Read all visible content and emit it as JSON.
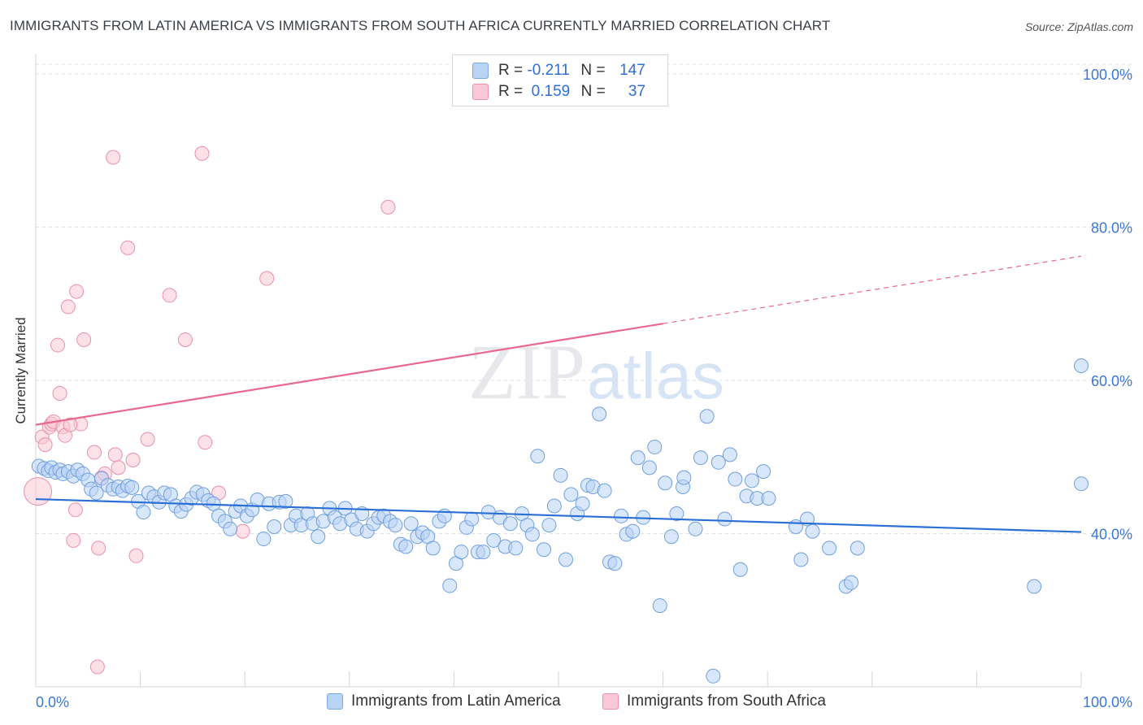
{
  "title": "IMMIGRANTS FROM LATIN AMERICA VS IMMIGRANTS FROM SOUTH AFRICA CURRENTLY MARRIED CORRELATION CHART",
  "source": "Source: ZipAtlas.com",
  "watermark": {
    "zip": "ZIP",
    "atlas": "atlas"
  },
  "legend": {
    "rows": [
      {
        "r_label": "R =",
        "r_value": "-0.211",
        "n_label": "N =",
        "n_value": "147"
      },
      {
        "r_label": "R =",
        "r_value": "0.159",
        "n_label": "N =",
        "n_value": "37"
      }
    ]
  },
  "bottom_legend": {
    "series1": "Immigrants from Latin America",
    "series2": "Immigrants from South Africa"
  },
  "colors": {
    "blue_fill": "#b9d3f5",
    "blue_stroke": "#6f9fe0",
    "blue_line": "#2a6fd6",
    "pink_fill": "#f9c8d6",
    "pink_stroke": "#ec8fab",
    "pink_line": "#e8688f",
    "axis_label": "#3a78d4"
  },
  "chart_data": {
    "type": "scatter",
    "title": "IMMIGRANTS FROM LATIN AMERICA VS IMMIGRANTS FROM SOUTH AFRICA CURRENTLY MARRIED CORRELATION CHART",
    "xlabel": "",
    "ylabel": "Currently Married",
    "xlim": [
      0,
      100
    ],
    "ylim": [
      20,
      102
    ],
    "x_tick_labels": [
      "0.0%",
      "100.0%"
    ],
    "y_tick_labels": [
      "40.0%",
      "60.0%",
      "80.0%",
      "100.0%"
    ],
    "y_ticks": [
      40,
      60,
      80,
      100
    ],
    "grid": true,
    "legend_placement": "top-center",
    "series": [
      {
        "name": "Immigrants from Latin America",
        "R": -0.211,
        "N": 147,
        "trend": {
          "x": [
            0,
            100
          ],
          "y": [
            44.5,
            40.2
          ],
          "dashed_from": null
        },
        "points": [
          [
            0.3,
            48.8
          ],
          [
            0.8,
            48.5
          ],
          [
            1.2,
            48.2
          ],
          [
            1.5,
            48.6
          ],
          [
            1.9,
            48.0
          ],
          [
            2.3,
            48.3
          ],
          [
            2.6,
            47.8
          ],
          [
            3.1,
            48.1
          ],
          [
            3.6,
            47.5
          ],
          [
            4.0,
            48.3
          ],
          [
            4.5,
            47.8
          ],
          [
            5.0,
            47.0
          ],
          [
            5.3,
            45.8
          ],
          [
            5.8,
            45.3
          ],
          [
            6.3,
            47.2
          ],
          [
            6.9,
            46.3
          ],
          [
            7.4,
            45.8
          ],
          [
            7.9,
            46.1
          ],
          [
            8.3,
            45.6
          ],
          [
            8.8,
            46.2
          ],
          [
            9.2,
            46.0
          ],
          [
            9.8,
            44.2
          ],
          [
            10.3,
            42.8
          ],
          [
            10.8,
            45.3
          ],
          [
            11.3,
            44.8
          ],
          [
            11.8,
            44.1
          ],
          [
            12.3,
            45.3
          ],
          [
            12.9,
            45.1
          ],
          [
            13.4,
            43.6
          ],
          [
            13.9,
            42.9
          ],
          [
            14.4,
            43.8
          ],
          [
            14.9,
            44.6
          ],
          [
            15.4,
            45.4
          ],
          [
            16.0,
            45.1
          ],
          [
            16.5,
            44.3
          ],
          [
            17.0,
            43.9
          ],
          [
            17.5,
            42.3
          ],
          [
            18.1,
            41.6
          ],
          [
            18.6,
            40.6
          ],
          [
            19.1,
            42.9
          ],
          [
            19.6,
            43.6
          ],
          [
            20.2,
            42.3
          ],
          [
            20.7,
            43.1
          ],
          [
            21.2,
            44.4
          ],
          [
            21.8,
            39.3
          ],
          [
            22.3,
            43.9
          ],
          [
            22.8,
            40.9
          ],
          [
            23.3,
            44.1
          ],
          [
            23.9,
            44.2
          ],
          [
            24.4,
            41.1
          ],
          [
            24.9,
            42.3
          ],
          [
            25.4,
            41.1
          ],
          [
            26.0,
            42.6
          ],
          [
            26.5,
            41.3
          ],
          [
            27.0,
            39.6
          ],
          [
            27.5,
            41.6
          ],
          [
            28.1,
            43.3
          ],
          [
            28.6,
            42.1
          ],
          [
            29.1,
            41.3
          ],
          [
            29.6,
            43.3
          ],
          [
            30.2,
            41.8
          ],
          [
            30.7,
            40.6
          ],
          [
            31.2,
            42.6
          ],
          [
            31.7,
            40.3
          ],
          [
            32.3,
            41.3
          ],
          [
            32.8,
            42.1
          ],
          [
            33.3,
            42.3
          ],
          [
            33.9,
            41.6
          ],
          [
            34.4,
            41.1
          ],
          [
            34.9,
            38.6
          ],
          [
            35.4,
            38.3
          ],
          [
            35.9,
            41.3
          ],
          [
            36.5,
            39.6
          ],
          [
            37.0,
            40.1
          ],
          [
            37.5,
            39.6
          ],
          [
            38.0,
            38.1
          ],
          [
            38.6,
            41.6
          ],
          [
            39.1,
            42.3
          ],
          [
            39.6,
            33.2
          ],
          [
            40.2,
            36.1
          ],
          [
            40.7,
            37.6
          ],
          [
            41.2,
            40.8
          ],
          [
            41.7,
            41.9
          ],
          [
            42.3,
            37.6
          ],
          [
            42.8,
            37.6
          ],
          [
            43.3,
            42.8
          ],
          [
            43.8,
            39.1
          ],
          [
            44.4,
            42.1
          ],
          [
            44.9,
            38.3
          ],
          [
            45.4,
            41.3
          ],
          [
            45.9,
            38.1
          ],
          [
            46.5,
            42.6
          ],
          [
            47.0,
            41.1
          ],
          [
            47.5,
            39.9
          ],
          [
            48.0,
            50.1
          ],
          [
            48.6,
            37.9
          ],
          [
            49.1,
            41.1
          ],
          [
            49.6,
            43.6
          ],
          [
            50.2,
            47.6
          ],
          [
            50.7,
            36.6
          ],
          [
            51.2,
            45.1
          ],
          [
            51.8,
            42.6
          ],
          [
            52.3,
            43.9
          ],
          [
            52.8,
            46.3
          ],
          [
            53.3,
            46.1
          ],
          [
            53.9,
            55.6
          ],
          [
            54.4,
            45.6
          ],
          [
            54.9,
            36.3
          ],
          [
            55.4,
            36.1
          ],
          [
            56.0,
            42.3
          ],
          [
            56.5,
            39.9
          ],
          [
            57.1,
            40.3
          ],
          [
            57.6,
            49.9
          ],
          [
            58.1,
            42.1
          ],
          [
            58.7,
            48.6
          ],
          [
            59.2,
            51.3
          ],
          [
            59.7,
            30.6
          ],
          [
            60.2,
            46.6
          ],
          [
            60.8,
            39.6
          ],
          [
            61.3,
            42.6
          ],
          [
            61.9,
            46.1
          ],
          [
            62.0,
            47.3
          ],
          [
            63.1,
            40.6
          ],
          [
            63.6,
            49.9
          ],
          [
            64.2,
            55.3
          ],
          [
            64.8,
            21.4
          ],
          [
            65.3,
            49.3
          ],
          [
            65.9,
            41.9
          ],
          [
            66.4,
            50.3
          ],
          [
            66.9,
            47.1
          ],
          [
            67.4,
            35.3
          ],
          [
            68.0,
            44.9
          ],
          [
            68.5,
            46.9
          ],
          [
            69.0,
            44.6
          ],
          [
            69.6,
            48.1
          ],
          [
            70.1,
            44.6
          ],
          [
            72.7,
            40.9
          ],
          [
            73.2,
            36.6
          ],
          [
            73.8,
            41.9
          ],
          [
            74.3,
            40.3
          ],
          [
            75.9,
            38.1
          ],
          [
            77.5,
            33.1
          ],
          [
            78.0,
            33.6
          ],
          [
            78.6,
            38.1
          ],
          [
            95.5,
            33.1
          ],
          [
            100,
            61.9
          ],
          [
            100,
            46.5
          ]
        ]
      },
      {
        "name": "Immigrants from South Africa",
        "R": 0.159,
        "N": 37,
        "trend": {
          "x": [
            0,
            100
          ],
          "y": [
            54.2,
            76.2
          ],
          "dashed_from": 60
        },
        "points": [
          [
            0.2,
            45.5
          ],
          [
            0.6,
            52.6
          ],
          [
            0.9,
            51.6
          ],
          [
            1.3,
            53.9
          ],
          [
            1.5,
            54.3
          ],
          [
            1.7,
            54.6
          ],
          [
            2.1,
            64.6
          ],
          [
            2.3,
            58.3
          ],
          [
            2.6,
            53.9
          ],
          [
            2.8,
            52.8
          ],
          [
            3.1,
            69.6
          ],
          [
            3.6,
            39.1
          ],
          [
            3.8,
            43.1
          ],
          [
            3.9,
            71.6
          ],
          [
            4.3,
            54.3
          ],
          [
            4.6,
            65.3
          ],
          [
            5.6,
            50.6
          ],
          [
            6.0,
            38.1
          ],
          [
            6.3,
            47.3
          ],
          [
            6.6,
            47.8
          ],
          [
            7.4,
            89.1
          ],
          [
            7.6,
            50.3
          ],
          [
            7.9,
            48.6
          ],
          [
            8.8,
            77.3
          ],
          [
            9.3,
            49.6
          ],
          [
            9.6,
            37.1
          ],
          [
            10.7,
            52.3
          ],
          [
            12.8,
            71.1
          ],
          [
            14.3,
            65.3
          ],
          [
            15.9,
            89.6
          ],
          [
            16.2,
            51.9
          ],
          [
            17.5,
            45.3
          ],
          [
            19.8,
            40.3
          ],
          [
            22.1,
            73.3
          ],
          [
            33.7,
            82.6
          ],
          [
            5.9,
            22.6
          ],
          [
            3.3,
            54.2
          ]
        ]
      }
    ]
  }
}
